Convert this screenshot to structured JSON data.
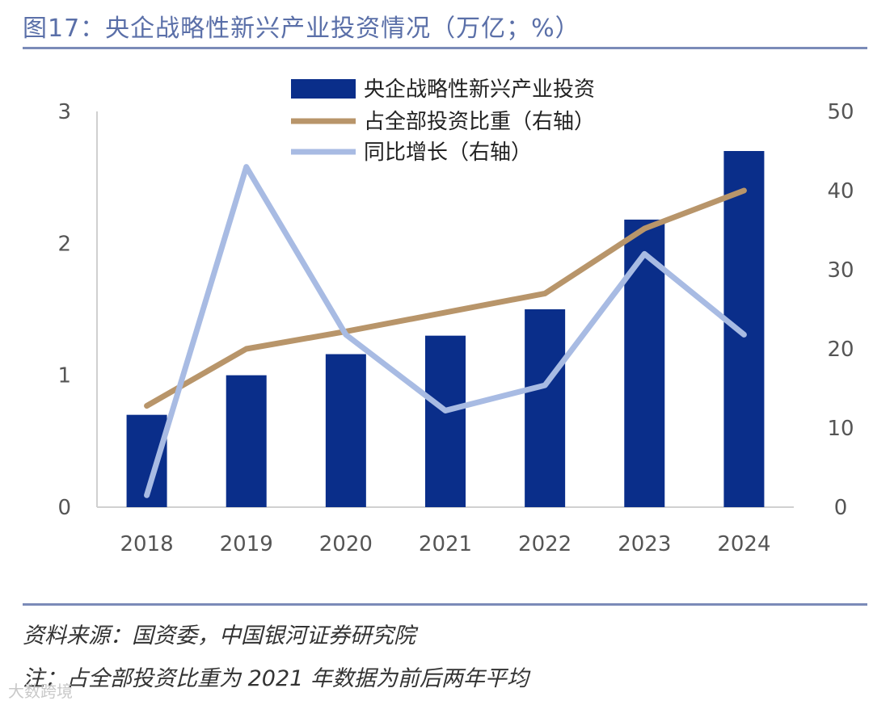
{
  "title": "图17：央企战略性新兴产业投资情况（万亿；%）",
  "source": "资料来源：国资委，中国银河证券研究院",
  "note": "注：占全部投资比重为 2021 年数据为前后两年平均",
  "watermark": "大数跨境",
  "colors": {
    "bar": "#0a2e8a",
    "share_line": "#b8956a",
    "growth_line": "#a8bbe3",
    "axis": "#d0d0d0",
    "title": "#5a6fa8"
  },
  "chart_data": {
    "type": "bar",
    "categories": [
      "2018",
      "2019",
      "2020",
      "2021",
      "2022",
      "2023",
      "2024"
    ],
    "series": [
      {
        "name": "央企战略性新兴产业投资",
        "type": "bar",
        "axis": "left",
        "values": [
          0.7,
          1.0,
          1.16,
          1.3,
          1.5,
          2.18,
          2.7
        ]
      },
      {
        "name": "占全部投资比重（右轴）",
        "type": "line",
        "axis": "right",
        "values": [
          12.8,
          20.0,
          22.2,
          24.6,
          27.0,
          35.2,
          40.0
        ]
      },
      {
        "name": "同比增长（右轴）",
        "type": "line",
        "axis": "right",
        "values": [
          1.5,
          43.0,
          21.8,
          12.2,
          15.4,
          32.0,
          21.8
        ]
      }
    ],
    "y_left": {
      "min": 0,
      "max": 3,
      "ticks": [
        "0",
        "1",
        "2",
        "3"
      ]
    },
    "y_right": {
      "min": 0,
      "max": 50,
      "ticks": [
        "0",
        "10",
        "20",
        "30",
        "40",
        "50"
      ]
    },
    "legend": [
      "央企战略性新兴产业投资",
      "占全部投资比重（右轴）",
      "同比增长（右轴）"
    ],
    "legend_position": "top-center",
    "grid": false
  }
}
